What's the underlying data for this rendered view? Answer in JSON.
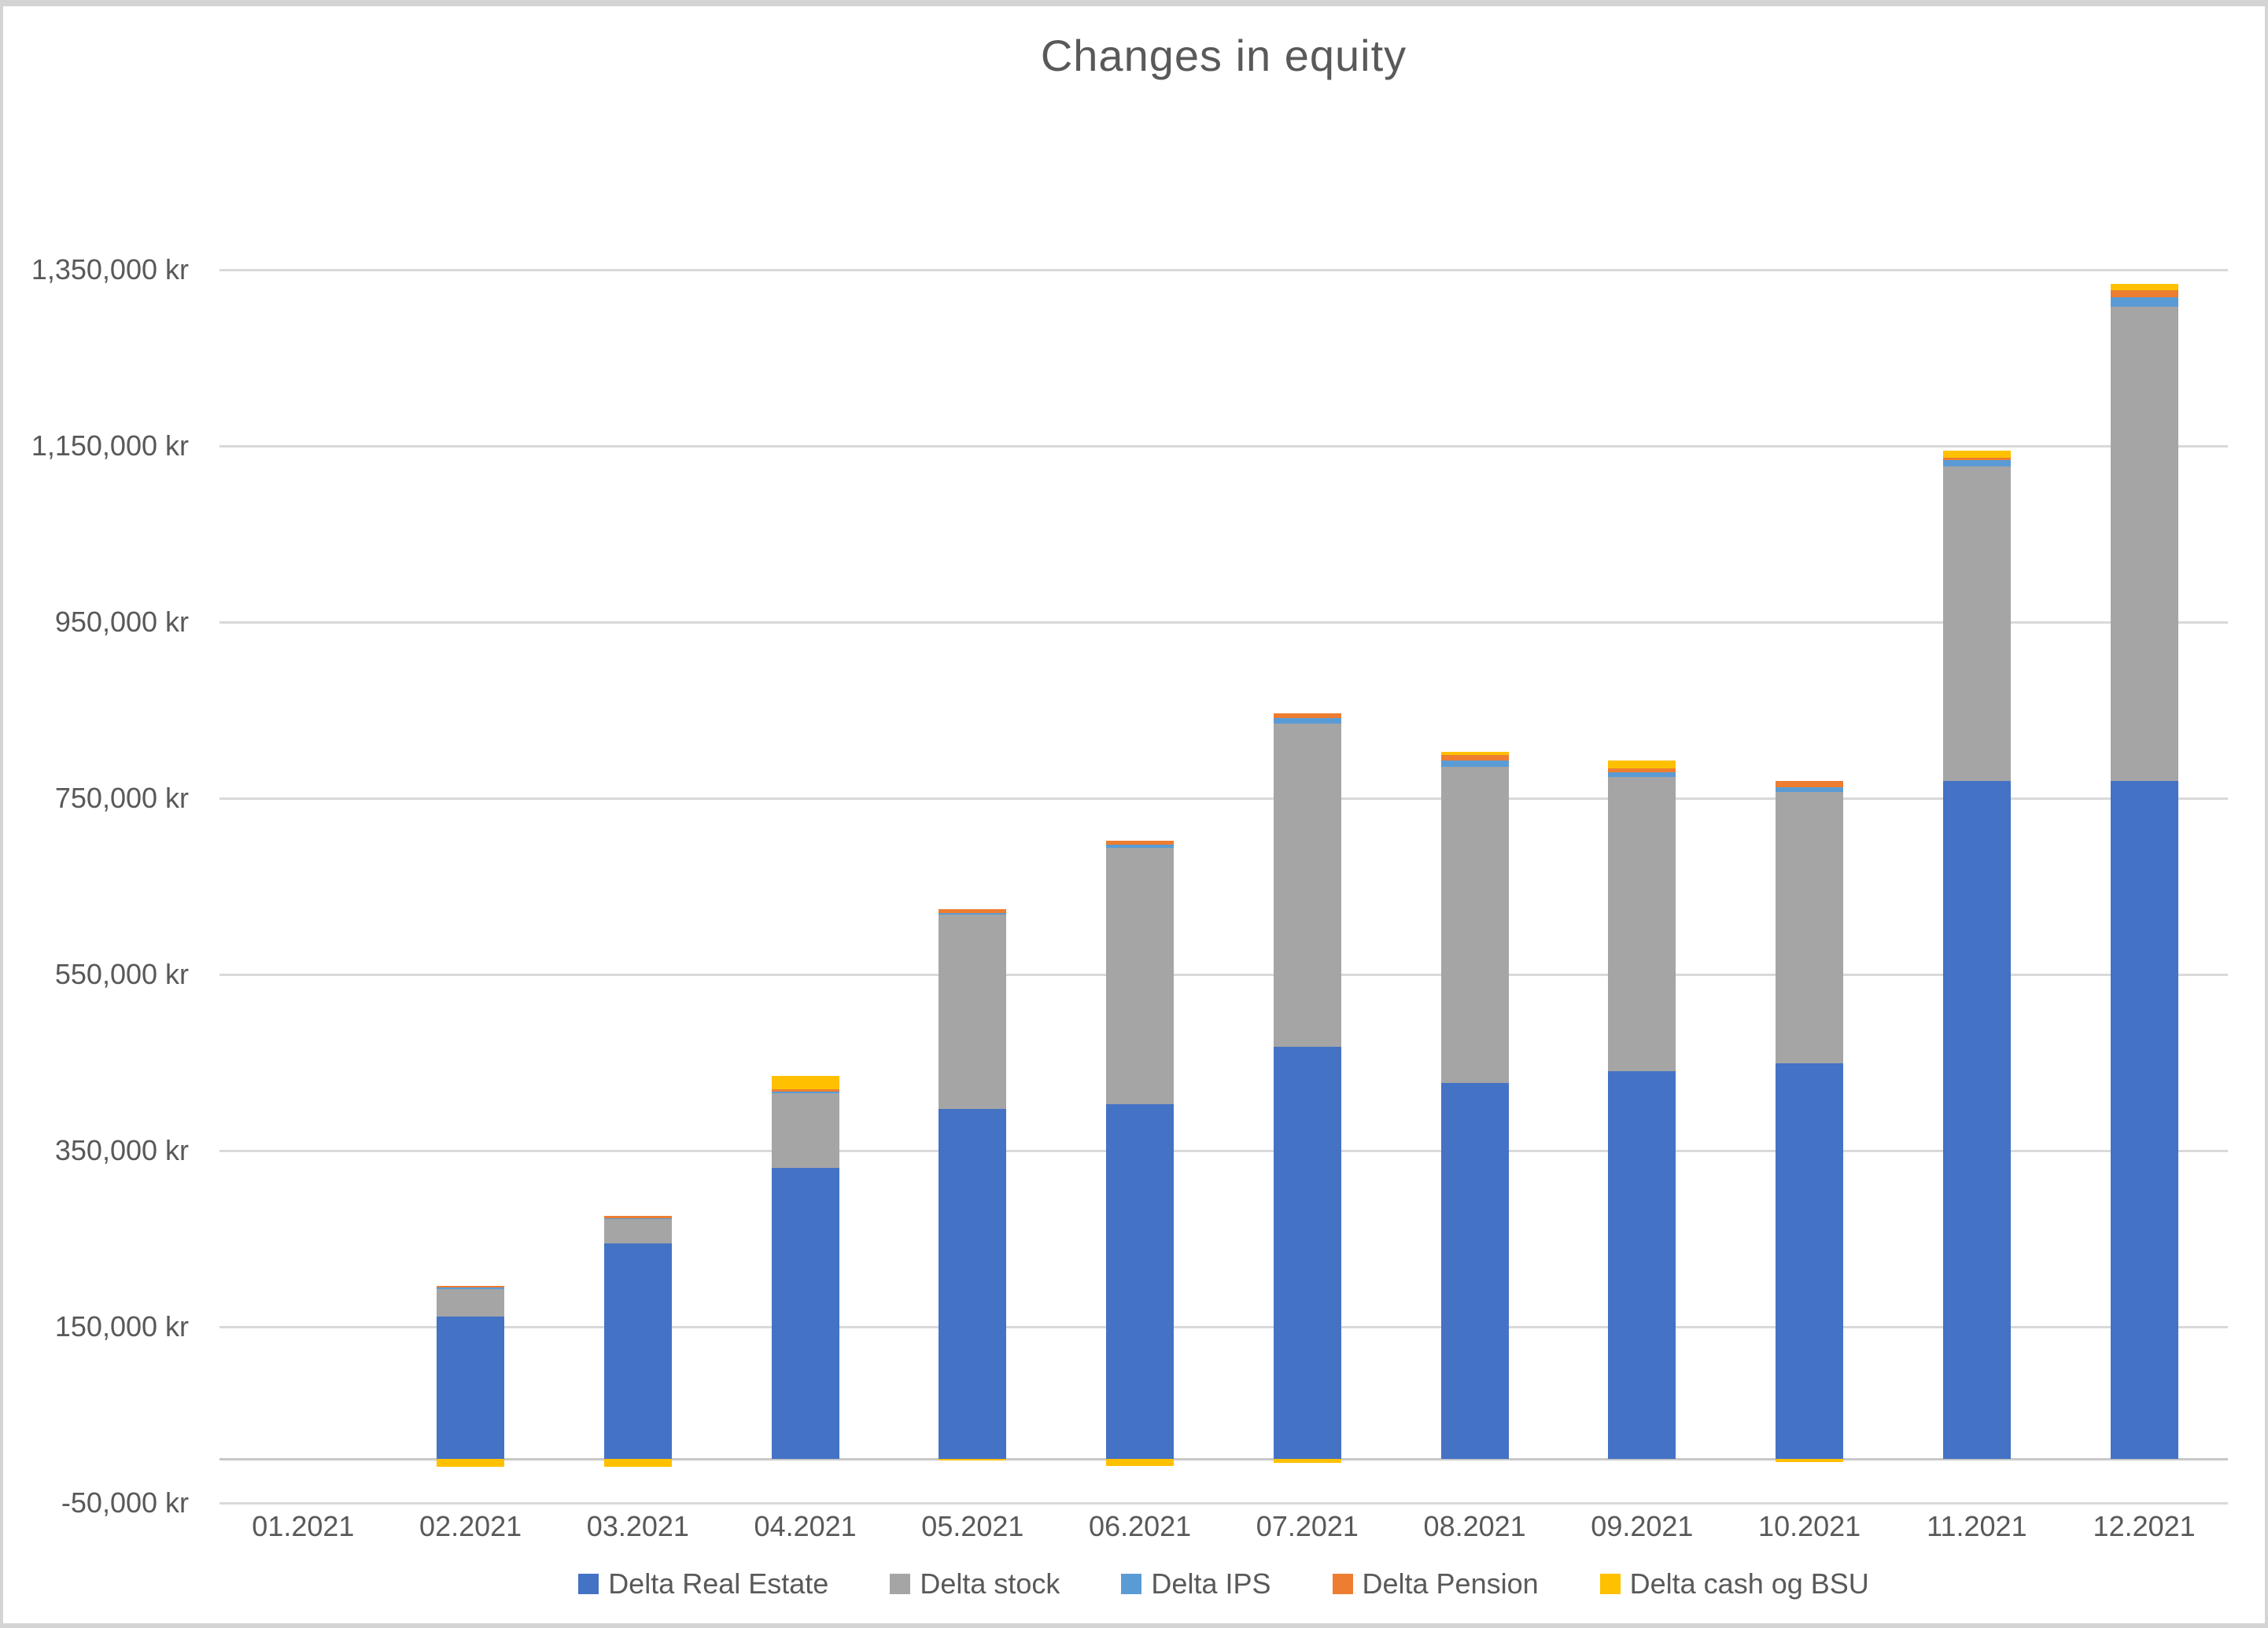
{
  "window": {
    "background": "#ffffff",
    "border_color": "#d4d4d4"
  },
  "chart_data": {
    "type": "bar",
    "stacked": true,
    "title": "Changes in equity",
    "xlabel": "",
    "ylabel": "",
    "categories": [
      "01.2021",
      "02.2021",
      "03.2021",
      "04.2021",
      "05.2021",
      "06.2021",
      "07.2021",
      "08.2021",
      "09.2021",
      "10.2021",
      "11.2021",
      "12.2021"
    ],
    "series": [
      {
        "name": "Delta Real Estate",
        "color": "#4472C4",
        "values": [
          0,
          162000,
          245000,
          330000,
          397000,
          403000,
          468000,
          427000,
          440000,
          449000,
          770000,
          770000
        ]
      },
      {
        "name": "Delta stock",
        "color": "#A5A5A5",
        "values": [
          0,
          31000,
          27000,
          85000,
          221000,
          291000,
          367000,
          359000,
          334000,
          308000,
          357000,
          538000
        ]
      },
      {
        "name": "Delta IPS",
        "color": "#5B9BD5",
        "values": [
          0,
          2000,
          1000,
          2000,
          2000,
          3500,
          6000,
          6500,
          5500,
          5500,
          6500,
          11000
        ]
      },
      {
        "name": "Delta Pension",
        "color": "#ED7D31",
        "values": [
          0,
          1000,
          3000,
          2500,
          4000,
          4500,
          5500,
          7000,
          4500,
          7000,
          3500,
          8000
        ]
      },
      {
        "name": "Delta cash og BSU",
        "color": "#FFC000",
        "values": [
          0,
          -9000,
          -9000,
          15500,
          -2000,
          -8000,
          -4500,
          3500,
          9000,
          -3500,
          8000,
          7000
        ]
      }
    ],
    "y_axis": {
      "unit": "kr",
      "min": -50000,
      "max": 1350000,
      "tick_step": 200000,
      "ticks": [
        {
          "value": 1350000,
          "label": "1,350,000 kr"
        },
        {
          "value": 1150000,
          "label": "1,150,000 kr"
        },
        {
          "value": 950000,
          "label": "950,000 kr"
        },
        {
          "value": 750000,
          "label": "750,000 kr"
        },
        {
          "value": 550000,
          "label": "550,000 kr"
        },
        {
          "value": 350000,
          "label": "350,000 kr"
        },
        {
          "value": 150000,
          "label": "150,000 kr"
        },
        {
          "value": -50000,
          "label": "-50,000 kr"
        }
      ]
    },
    "legend_position": "bottom",
    "grid": true,
    "colors": {
      "text": "#595959",
      "gridline": "#D9D9D9",
      "axis_line": "#C8C8C8"
    }
  }
}
